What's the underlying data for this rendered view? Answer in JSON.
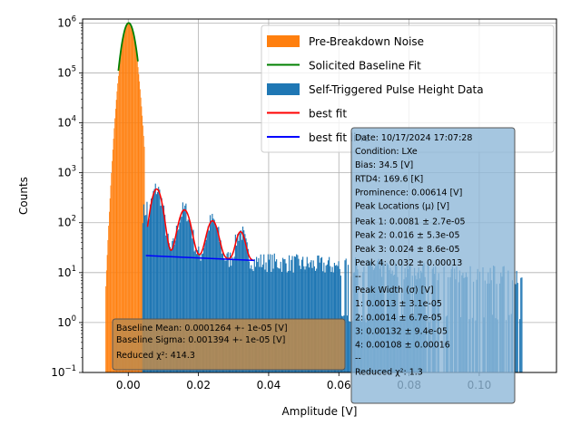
{
  "chart_data": {
    "type": "bar",
    "xlabel": "Amplitude [V]",
    "ylabel": "Counts",
    "xlim": [
      -0.013,
      0.122
    ],
    "ylim": [
      0.1,
      1200000
    ],
    "y_scale": "log",
    "grid": true,
    "legend_placement": "top-right",
    "x_ticks": [
      {
        "value": 0.0,
        "label": "0.00"
      },
      {
        "value": 0.02,
        "label": "0.02"
      },
      {
        "value": 0.04,
        "label": "0.04"
      },
      {
        "value": 0.06,
        "label": "0.06"
      },
      {
        "value": 0.08,
        "label": "0.08"
      },
      {
        "value": 0.1,
        "label": "0.10"
      }
    ],
    "y_ticks": [
      {
        "value": 0.1,
        "base": "10",
        "exp": "−1"
      },
      {
        "value": 1,
        "base": "10",
        "exp": "0"
      },
      {
        "value": 10,
        "base": "10",
        "exp": "1"
      },
      {
        "value": 100,
        "base": "10",
        "exp": "2"
      },
      {
        "value": 1000,
        "base": "10",
        "exp": "3"
      },
      {
        "value": 10000,
        "base": "10",
        "exp": "4"
      },
      {
        "value": 100000,
        "base": "10",
        "exp": "5"
      },
      {
        "value": 1000000,
        "base": "10",
        "exp": "6"
      }
    ],
    "legend": [
      {
        "label": "Pre-Breakdown Noise",
        "kind": "patch",
        "color": "#ff7f0e"
      },
      {
        "label": "Solicited Baseline Fit",
        "kind": "line",
        "color": "#008000"
      },
      {
        "label": "Self-Triggered Pulse Height Data",
        "kind": "patch",
        "color": "#1f77b4"
      },
      {
        "label": "best fit",
        "kind": "line",
        "color": "#ff0000"
      },
      {
        "label": "best fit line",
        "kind": "line",
        "color": "#0000ff"
      }
    ],
    "baseline_gaussian": {
      "mean": 0.0001264,
      "sigma": 0.001394,
      "amplitude": 1000000,
      "x_range": [
        -0.0028,
        0.0028
      ]
    },
    "pulse_peaks": [
      {
        "mu": 0.0081,
        "sigma": 0.0013,
        "height": 450
      },
      {
        "mu": 0.016,
        "sigma": 0.0014,
        "height": 160
      },
      {
        "mu": 0.024,
        "sigma": 0.00132,
        "height": 90
      },
      {
        "mu": 0.032,
        "sigma": 0.00108,
        "height": 48
      }
    ],
    "fit_line": {
      "x": [
        0.005,
        0.036
      ],
      "y": [
        22,
        17.5
      ]
    },
    "noise_hist": {
      "x_range": [
        -0.0065,
        0.0045
      ],
      "bin_width": 0.0002
    },
    "pulse_hist": {
      "x_range": [
        0.004,
        0.112
      ],
      "bin_width": 0.0003
    }
  },
  "baseline_box": {
    "lines": [
      "Baseline Mean: 0.0001264 +- 1e-05 [V]",
      "Baseline Sigma: 0.001394 +- 1e-05 [V]",
      "Reduced χ²: 414.3"
    ]
  },
  "info_box": {
    "lines": [
      "Date: 10/17/2024 17:07:28",
      "Condition: LXe",
      "Bias: 34.5 [V]",
      "RTD4: 169.6 [K]",
      "Prominence: 0.00614 [V]",
      "Peak Locations (μ) [V]",
      "Peak 1: 0.0081 ± 2.7e-05",
      "Peak 2: 0.016 ± 5.3e-05",
      "Peak 3: 0.024 ± 8.6e-05",
      "Peak 4: 0.032 ± 0.00013",
      "--",
      "Peak Width (σ) [V]",
      "1: 0.0013 ± 3.1e-05",
      "2: 0.0014 ± 6.7e-05",
      "3: 0.00132 ± 9.4e-05",
      "4: 0.00108 ± 0.00016",
      "--",
      "Reduced χ²: 1.3"
    ]
  }
}
